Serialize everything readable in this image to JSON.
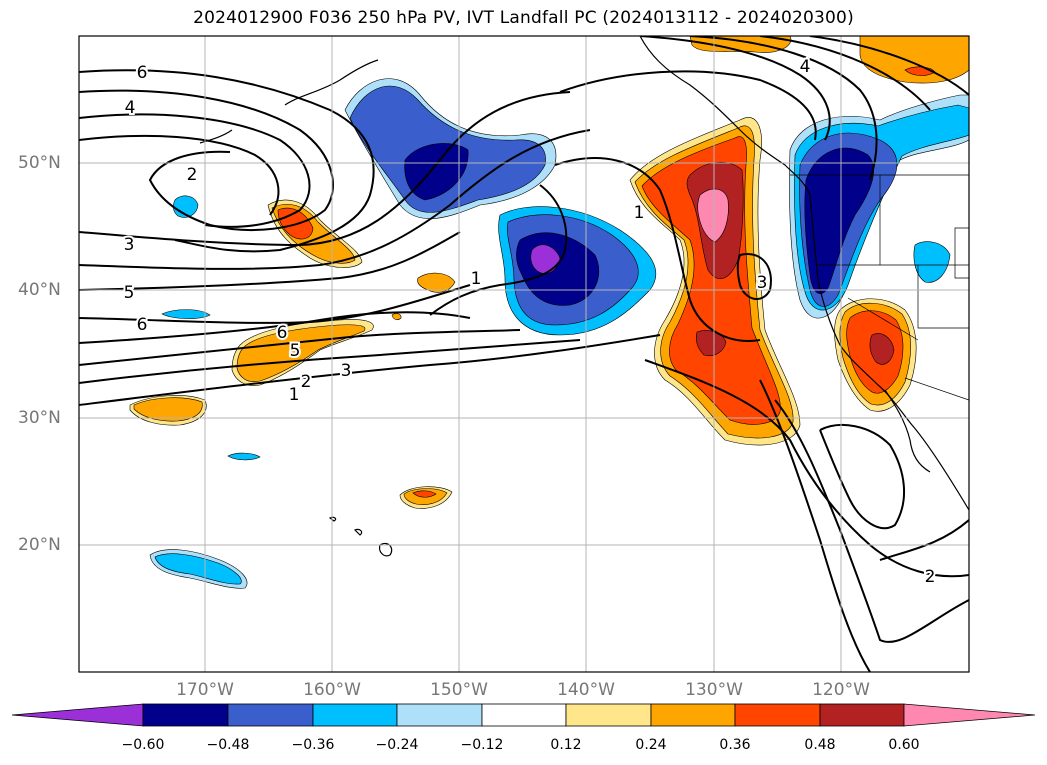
{
  "title": "2024012900 F036 250 hPa PV, IVT Landfall PC (2024013112 - 2024020300)",
  "lon_labels": [
    "170°W",
    "160°W",
    "150°W",
    "140°W",
    "130°W",
    "120°W"
  ],
  "lat_labels": [
    "50°N",
    "40°N",
    "30°N",
    "20°N"
  ],
  "colorbar": {
    "ticks": [
      "−0.60",
      "−0.48",
      "−0.36",
      "−0.24",
      "−0.12",
      "0.12",
      "0.24",
      "0.36",
      "0.48",
      "0.60"
    ],
    "colors": [
      "#9b30d9",
      "#00008b",
      "#3a5fcd",
      "#00bfff",
      "#afe0fa",
      "#ffffff",
      "#ffe68a",
      "#ffa500",
      "#ff4500",
      "#b22222",
      "#ff88b0"
    ]
  },
  "contour_labels": [
    "6",
    "4",
    "2",
    "3",
    "5",
    "6",
    "6",
    "5",
    "3",
    "2",
    "1",
    "1",
    "1",
    "3",
    "4",
    "2"
  ]
}
